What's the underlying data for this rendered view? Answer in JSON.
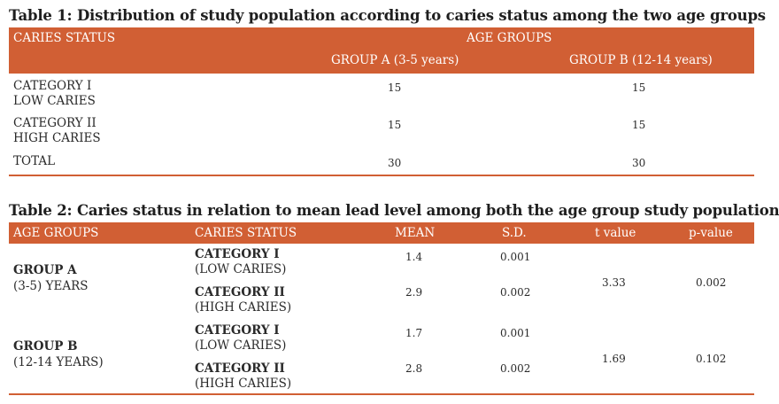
{
  "table1": {
    "caption": "Table 1: Distribution of study population according to caries status among the two age groups",
    "headers": {
      "caries_status": "CARIES STATUS",
      "age_groups": "AGE GROUPS",
      "group_a": "GROUP A (3-5 years)",
      "group_b": "GROUP B (12-14 years)"
    },
    "rows": [
      {
        "label1": "CATEGORY I",
        "label2": "LOW CARIES",
        "group_a": "15",
        "group_b": "15"
      },
      {
        "label1": "CATEGORY II",
        "label2": "HIGH CARIES",
        "group_a": "15",
        "group_b": "15"
      },
      {
        "label1": "TOTAL",
        "label2": "",
        "group_a": "30",
        "group_b": "30"
      }
    ]
  },
  "table2": {
    "caption": "Table 2: Caries status in relation to mean lead level among both the age group study population",
    "headers": {
      "age_groups": "AGE GROUPS",
      "caries_status": "CARIES STATUS",
      "mean": "MEAN",
      "sd": "S.D.",
      "t_value": "t value",
      "p_value": "p-value"
    },
    "groups": [
      {
        "name": "GROUP A",
        "range": "(3-5) YEARS",
        "t_value": "3.33",
        "p_value": "0.002",
        "rows": [
          {
            "category": "CATEGORY I",
            "level": "(LOW CARIES)",
            "mean": "1.4",
            "sd": "0.001"
          },
          {
            "category": "CATEGORY II",
            "level": "(HIGH CARIES)",
            "mean": "2.9",
            "sd": "0.002"
          }
        ]
      },
      {
        "name": "GROUP B",
        "range": "(12-14 YEARS)",
        "t_value": "1.69",
        "p_value": "0.102",
        "rows": [
          {
            "category": "CATEGORY I",
            "level": "(LOW CARIES)",
            "mean": "1.7",
            "sd": "0.001"
          },
          {
            "category": "CATEGORY II",
            "level": "(HIGH CARIES)",
            "mean": "2.8",
            "sd": "0.002"
          }
        ]
      }
    ]
  },
  "colors": {
    "accent": "#d15f34",
    "header_text": "#ffffff",
    "body_text": "#2a2a2a"
  }
}
